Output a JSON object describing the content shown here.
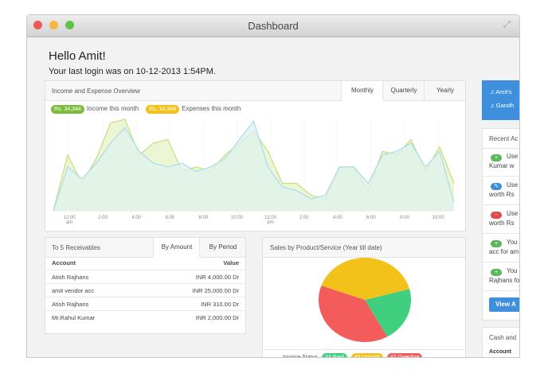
{
  "window_title": "Dashboard",
  "greeting": "Hello Amit!",
  "last_login": "Your last login was on 10-12-2013 1:54PM.",
  "overview": {
    "title": "Income and Expense Overview",
    "tabs": [
      "Monthly",
      "Quarterly",
      "Yearly"
    ],
    "active_tab": 0
  },
  "chart_data": [
    {
      "type": "area",
      "ylim": [
        0,
        100
      ],
      "xtick_labels": [
        {
          "time": "12:00",
          "period": "am"
        },
        {
          "time": "2:00"
        },
        {
          "time": "4:00"
        },
        {
          "time": "6:00"
        },
        {
          "time": "8:00"
        },
        {
          "time": "10:00"
        },
        {
          "time": "12:00",
          "period": "pm"
        },
        {
          "time": "2:00"
        },
        {
          "time": "4:00"
        },
        {
          "time": "6:00"
        },
        {
          "time": "8:00"
        },
        {
          "time": "10:00"
        }
      ],
      "series": [
        {
          "name": "Income this month",
          "badge": "Rs. 34,344",
          "badge_color": "#7dbb3f",
          "color": "#c6df7a",
          "fill": "#e6f3c6",
          "values": [
            0,
            61,
            30,
            57,
            96,
            100,
            61,
            74,
            78,
            43,
            48,
            43,
            61,
            74,
            87,
            65,
            30,
            30,
            17,
            13,
            48,
            48,
            22,
            65,
            61,
            78,
            43,
            70,
            30
          ]
        },
        {
          "name": "Expenses this month",
          "badge": "Rs. 34,344",
          "badge_color": "#f2c21a",
          "color": "#a9dcec",
          "fill": "#dff2ee",
          "values": [
            0,
            48,
            35,
            52,
            74,
            91,
            65,
            52,
            48,
            52,
            43,
            48,
            57,
            78,
            98,
            48,
            26,
            22,
            13,
            17,
            48,
            48,
            30,
            61,
            65,
            74,
            48,
            65,
            9
          ]
        }
      ]
    },
    {
      "type": "pie",
      "title": "Invoice Status",
      "categories": [
        "Paid",
        "Unpaid",
        "Overdue"
      ],
      "values": [
        23,
        44,
        42
      ],
      "colors": [
        "#3fcf7f",
        "#f2c21a",
        "#f45b5b"
      ]
    }
  ],
  "receivables": {
    "title": "To 5 Receivables",
    "tabs": [
      "By Amount",
      "By Period"
    ],
    "active_tab": 0,
    "columns": [
      "Account",
      "Value"
    ],
    "rows": [
      [
        "Atish Rajhans",
        "INR 4,000.00 Dr"
      ],
      [
        "amit vendor acc",
        "INR 25,000.00 Dr"
      ],
      [
        "Atish Rajhans",
        "INR 310.00 Dr"
      ],
      [
        "Mr.Rahul Kumar",
        "INR 2,000.00 Dr"
      ]
    ]
  },
  "sales": {
    "title": "Sales by Product/Service (Year till date)"
  },
  "sidebar": {
    "notice": [
      "Amit's",
      "Gandh"
    ],
    "recent_title": "Recent Ac",
    "items": [
      {
        "icon": "+",
        "color": "#5cb85c",
        "lines": [
          "Use",
          "Kumar w"
        ]
      },
      {
        "icon": "✎",
        "color": "#3a8fd8",
        "lines": [
          "Use",
          "worth Rs"
        ]
      },
      {
        "icon": "−",
        "color": "#e04b4b",
        "lines": [
          "Use",
          "worth Rs"
        ]
      },
      {
        "icon": "+",
        "color": "#5cb85c",
        "lines": [
          "You",
          "acc for am"
        ]
      },
      {
        "icon": "+",
        "color": "#5cb85c",
        "lines": [
          "You",
          "Rajhans fo"
        ]
      }
    ],
    "button": "View A",
    "cash_title": "Cash and",
    "cash_column": "Account"
  }
}
